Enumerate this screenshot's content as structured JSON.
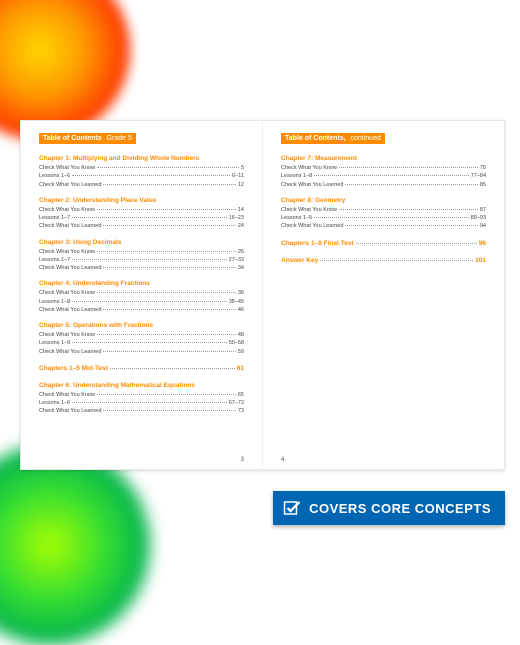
{
  "colors": {
    "accent": "#ff8c00",
    "badge_bg": "#0066b3",
    "badge_text": "#ffffff",
    "body_text": "#333333"
  },
  "left_page": {
    "header_title": "Table of Contents",
    "header_sub": "Grade 5",
    "page_number": "3",
    "sections": [
      {
        "title": "Chapter 1: Multiplying and Dividing Whole Numbers",
        "lines": [
          {
            "label": "Check What You Know",
            "page": "5"
          },
          {
            "label": "Lessons 1–6",
            "page": "6–11"
          },
          {
            "label": "Check What You Learned",
            "page": "12"
          }
        ]
      },
      {
        "title": "Chapter 2: Understanding Place Value",
        "lines": [
          {
            "label": "Check What You Know",
            "page": "14"
          },
          {
            "label": "Lessons 1–7",
            "page": "16–23"
          },
          {
            "label": "Check What You Learned",
            "page": "24"
          }
        ]
      },
      {
        "title": "Chapter 3: Using Decimals",
        "lines": [
          {
            "label": "Check What You Know",
            "page": "26"
          },
          {
            "label": "Lessons 1–7",
            "page": "27–33"
          },
          {
            "label": "Check What You Learned",
            "page": "34"
          }
        ]
      },
      {
        "title": "Chapter 4: Understanding Fractions",
        "lines": [
          {
            "label": "Check What You Know",
            "page": "36"
          },
          {
            "label": "Lessons 1–8",
            "page": "38–45"
          },
          {
            "label": "Check What You Learned",
            "page": "46"
          }
        ]
      },
      {
        "title": "Chapter 5: Operations with Fractions",
        "lines": [
          {
            "label": "Check What You Know",
            "page": "48"
          },
          {
            "label": "Lessons 1–9",
            "page": "50–58"
          },
          {
            "label": "Check What You Learned",
            "page": "59"
          }
        ]
      }
    ],
    "standalone1": {
      "label": "Chapters 1–5 Mid-Test",
      "page": "61"
    },
    "section6": {
      "title": "Chapter 6: Understanding Mathematical Equations",
      "lines": [
        {
          "label": "Check What You Know",
          "page": "65"
        },
        {
          "label": "Lessons 1–6",
          "page": "67–72"
        },
        {
          "label": "Check What You Learned",
          "page": "73"
        }
      ]
    }
  },
  "right_page": {
    "header_title": "Table of Contents,",
    "header_sub": "continued",
    "page_number": "4",
    "sections": [
      {
        "title": "Chapter 7: Measurement",
        "lines": [
          {
            "label": "Check What You Know",
            "page": "75"
          },
          {
            "label": "Lessons 1–8",
            "page": "77–84"
          },
          {
            "label": "Check What You Learned",
            "page": "85"
          }
        ]
      },
      {
        "title": "Chapter 8: Geometry",
        "lines": [
          {
            "label": "Check What You Know",
            "page": "87"
          },
          {
            "label": "Lessons 1–5",
            "page": "89–93"
          },
          {
            "label": "Check What You Learned",
            "page": "94"
          }
        ]
      }
    ],
    "standalone1": {
      "label": "Chapters 1–8 Final Test",
      "page": "96"
    },
    "standalone2": {
      "label": "Answer Key",
      "page": "101"
    }
  },
  "badge": {
    "text": "COVERS CORE CONCEPTS"
  }
}
